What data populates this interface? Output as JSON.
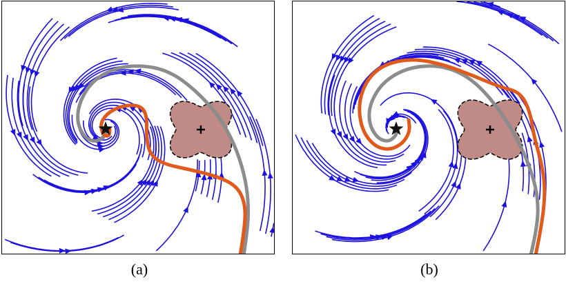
{
  "figure": {
    "panels": [
      {
        "id": "a",
        "caption": "(a)",
        "attractor": [
          150,
          185
        ],
        "obstacle": {
          "center": [
            288,
            186
          ],
          "lobe_radius": 55,
          "base_radius": 36
        },
        "gray_path": [
          [
            350,
            368
          ],
          [
            356,
            330
          ],
          [
            357,
            290
          ],
          [
            351,
            250
          ],
          [
            336,
            205
          ],
          [
            312,
            163
          ],
          [
            278,
            127
          ],
          [
            245,
            103
          ],
          [
            210,
            93
          ],
          [
            168,
            95
          ],
          [
            133,
            113
          ],
          [
            113,
            143
          ],
          [
            108,
            173
          ],
          [
            118,
            196
          ],
          [
            133,
            204
          ],
          [
            146,
            199
          ],
          [
            151,
            188
          ]
        ],
        "orange_path": [
          [
            345,
            368
          ],
          [
            352,
            326
          ],
          [
            352,
            292
          ],
          [
            340,
            268
          ],
          [
            312,
            254
          ],
          [
            272,
            244
          ],
          [
            234,
            236
          ],
          [
            214,
            222
          ],
          [
            209,
            196
          ],
          [
            210,
            167
          ],
          [
            202,
            152
          ],
          [
            180,
            150
          ],
          [
            156,
            159
          ],
          [
            142,
            176
          ],
          [
            146,
            194
          ],
          [
            155,
            196
          ],
          [
            156,
            186
          ]
        ],
        "streamline_count": 60
      },
      {
        "id": "b",
        "caption": "(b)",
        "attractor": [
          150,
          185
        ],
        "obstacle": {
          "center": [
            286,
            186
          ],
          "lobe_radius": 58,
          "base_radius": 37
        },
        "gray_path": [
          [
            345,
            368
          ],
          [
            354,
            330
          ],
          [
            356,
            288
          ],
          [
            346,
            246
          ],
          [
            326,
            200
          ],
          [
            300,
            158
          ],
          [
            270,
            122
          ],
          [
            238,
            100
          ],
          [
            202,
            92
          ],
          [
            162,
            98
          ],
          [
            130,
            118
          ],
          [
            112,
            148
          ],
          [
            110,
            176
          ],
          [
            122,
            198
          ],
          [
            138,
            204
          ],
          [
            149,
            196
          ],
          [
            152,
            186
          ]
        ],
        "orange_path": [
          [
            352,
            368
          ],
          [
            362,
            320
          ],
          [
            366,
            270
          ],
          [
            360,
            232
          ],
          [
            350,
            198
          ],
          [
            344,
            160
          ],
          [
            330,
            132
          ],
          [
            300,
            124
          ],
          [
            262,
            108
          ],
          [
            220,
            92
          ],
          [
            176,
            83
          ],
          [
            135,
            90
          ],
          [
            108,
            112
          ],
          [
            95,
            148
          ],
          [
            100,
            186
          ],
          [
            118,
            210
          ],
          [
            140,
            216
          ],
          [
            160,
            206
          ],
          [
            170,
            188
          ],
          [
            168,
            172
          ]
        ],
        "streamline_count": 60
      }
    ],
    "colors": {
      "streamline": "#1c10e0",
      "gray_path": "#8c8c8c",
      "orange_path": "#e05a1c",
      "obstacle_fill": "#c08a86",
      "obstacle_edge": "#000000",
      "attractor": "#111111"
    },
    "icons": {
      "attractor": "star-icon",
      "obstacle_center": "plus-icon",
      "flow_arrow": "arrowhead-icon"
    }
  }
}
